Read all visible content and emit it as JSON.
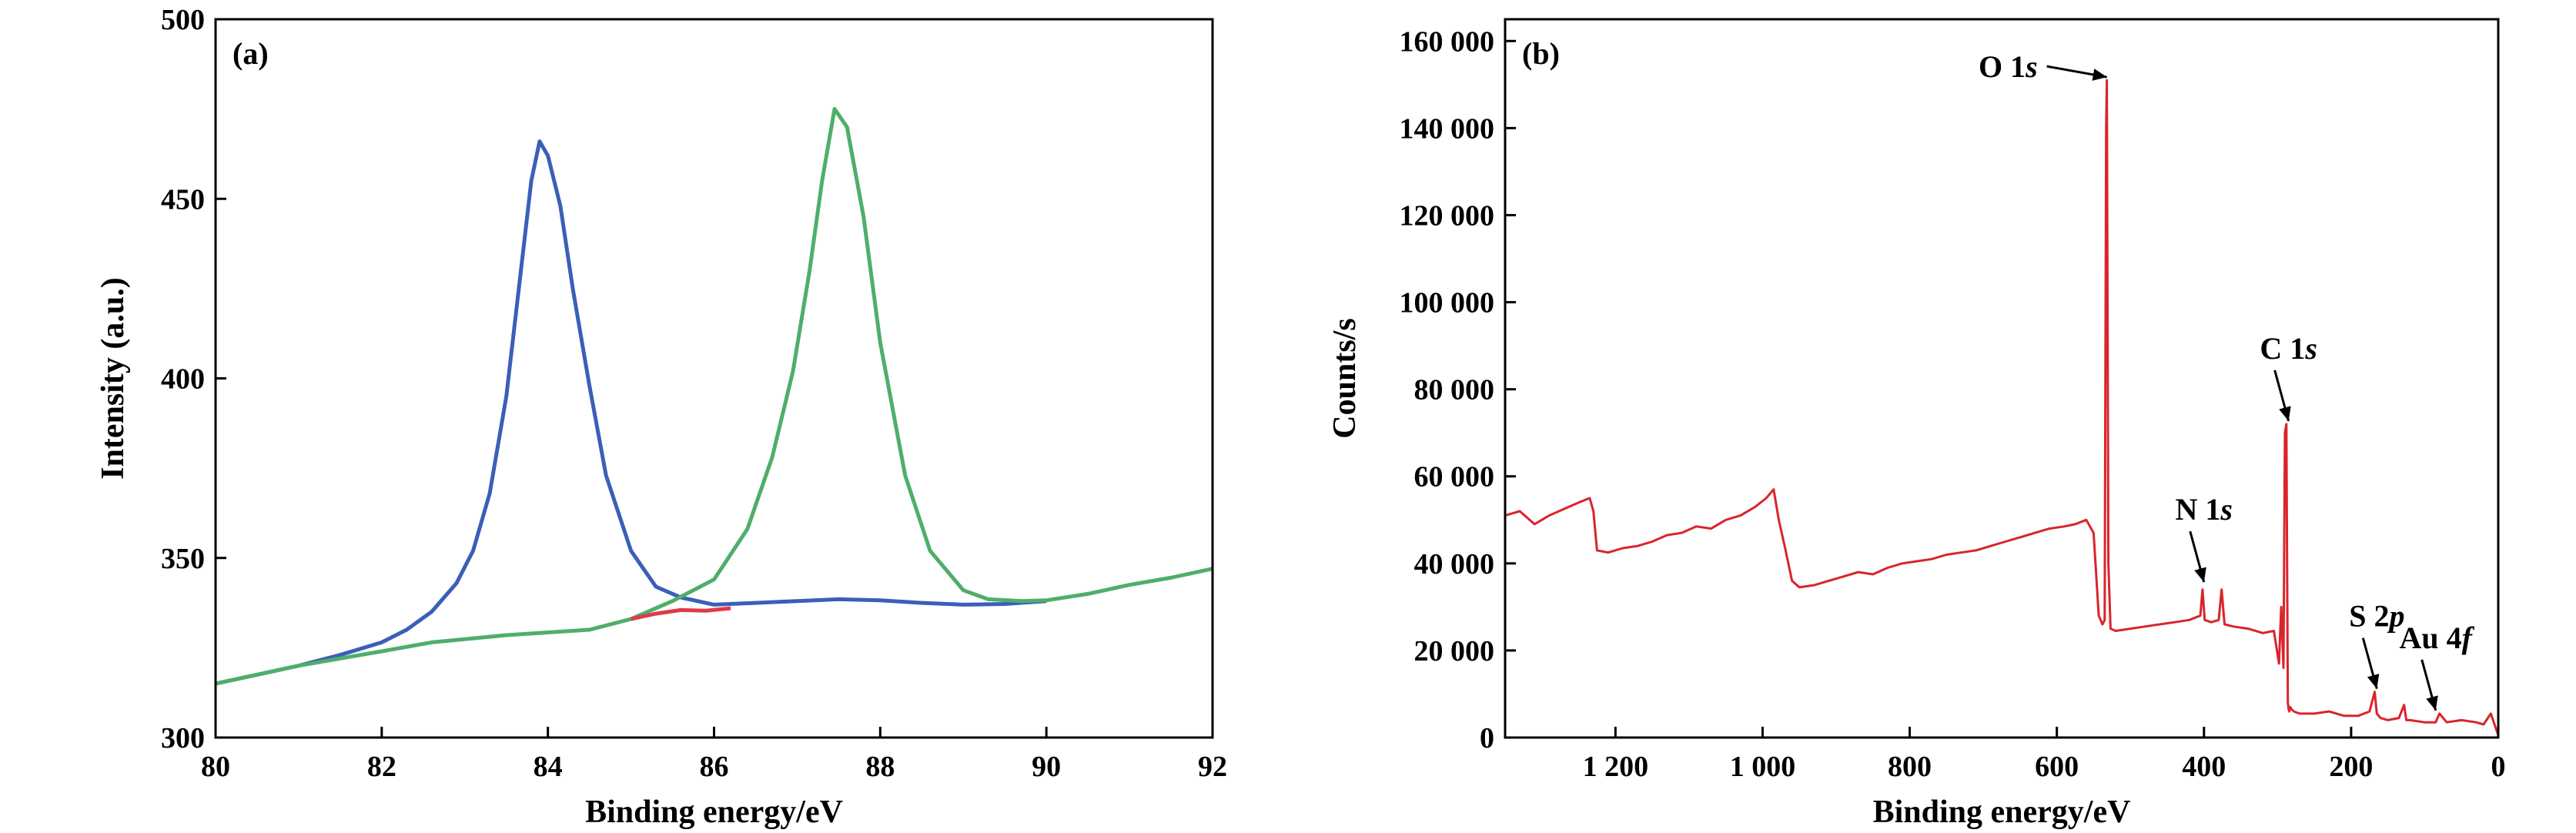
{
  "chart_data": [
    {
      "type": "line",
      "panel_label": "(a)",
      "xlabel": "Binding energy/eV",
      "ylabel": "Intensity (a.u.)",
      "xlim": [
        80,
        92
      ],
      "ylim": [
        300,
        500
      ],
      "xticks": [
        80,
        82,
        84,
        86,
        88,
        90,
        92
      ],
      "yticks": [
        300,
        350,
        400,
        450,
        500
      ],
      "xtick_labels": [
        "80",
        "82",
        "84",
        "86",
        "88",
        "90",
        "92"
      ],
      "ytick_labels": [
        "300",
        "350",
        "400",
        "450",
        "500"
      ],
      "colors": {
        "series_1": "#3b5fb8",
        "series_2": "#4fae6a",
        "series_3": "#e03a4a"
      },
      "series": [
        {
          "color": "#3b5fb8",
          "x": [
            80,
            80.5,
            81,
            81.5,
            82,
            82.3,
            82.6,
            82.9,
            83.1,
            83.3,
            83.5,
            83.65,
            83.8,
            83.9,
            84.0,
            84.15,
            84.3,
            84.5,
            84.7,
            85.0,
            85.3,
            85.6,
            86.0,
            86.5,
            87.0,
            87.5,
            88.0,
            88.5,
            89.0,
            89.5,
            90.0
          ],
          "y": [
            315,
            317.5,
            320,
            323,
            326.5,
            330,
            335,
            343,
            352,
            368,
            395,
            425,
            455,
            466,
            462,
            448,
            425,
            398,
            373,
            352,
            342,
            339,
            337,
            337.5,
            338,
            338.5,
            338.2,
            337.5,
            337,
            337.2,
            338
          ]
        },
        {
          "color": "#4fae6a",
          "x": [
            80,
            81,
            82,
            82.6,
            83.5,
            84.5,
            85.0,
            85.5,
            86.0,
            86.4,
            86.7,
            86.95,
            87.15,
            87.3,
            87.45,
            87.6,
            87.8,
            88.0,
            88.3,
            88.6,
            89.0,
            89.3,
            89.7,
            90.0,
            90.5,
            91.0,
            91.5,
            92.0
          ],
          "y": [
            315,
            320,
            324,
            326.5,
            328.5,
            330,
            333,
            338,
            344,
            358,
            378,
            402,
            430,
            455,
            475,
            470,
            445,
            410,
            373,
            352,
            341,
            338.5,
            338,
            338.2,
            340,
            342.5,
            344.5,
            347
          ]
        },
        {
          "color": "#e03a4a",
          "x": [
            85.0,
            85.3,
            85.6,
            85.9,
            86.2
          ],
          "y": [
            333,
            334.5,
            335.5,
            335.3,
            336
          ]
        }
      ]
    },
    {
      "type": "line",
      "panel_label": "(b)",
      "xlabel": "Binding energy/eV",
      "ylabel": "Counts/s",
      "xlim": [
        1350,
        0
      ],
      "ylim": [
        0,
        165000
      ],
      "xticks": [
        1200,
        1000,
        800,
        600,
        400,
        200,
        0
      ],
      "yticks": [
        0,
        20000,
        40000,
        60000,
        80000,
        100000,
        120000,
        140000,
        160000
      ],
      "xtick_labels": [
        "1 200",
        "1 000",
        "800",
        "600",
        "400",
        "200",
        "0"
      ],
      "ytick_labels": [
        "0",
        "20 000",
        "40 000",
        "60 000",
        "80 000",
        "100 000",
        "120 000",
        "140 000",
        "160 000"
      ],
      "colors": {
        "series_1": "#d9242b"
      },
      "annotations": [
        {
          "text": "O 1",
          "italic": "s",
          "target_x": 532,
          "target_y": 151000,
          "side": "left"
        },
        {
          "text": "C 1",
          "italic": "s",
          "target_x": 285,
          "target_y": 72000,
          "side": "above"
        },
        {
          "text": "N 1",
          "italic": "s",
          "target_x": 400,
          "target_y": 35000,
          "side": "above"
        },
        {
          "text": "S 2",
          "italic": "p",
          "target_x": 165,
          "target_y": 10500,
          "side": "above"
        },
        {
          "text": "Au 4",
          "italic": "f",
          "target_x": 85,
          "target_y": 5500,
          "side": "above"
        }
      ],
      "series": [
        {
          "color": "#d9242b",
          "x": [
            1350,
            1330,
            1310,
            1290,
            1270,
            1250,
            1235,
            1230,
            1225,
            1210,
            1190,
            1170,
            1150,
            1130,
            1110,
            1090,
            1070,
            1050,
            1030,
            1010,
            995,
            985,
            978,
            970,
            960,
            950,
            930,
            910,
            890,
            870,
            850,
            830,
            810,
            790,
            770,
            750,
            730,
            710,
            690,
            670,
            650,
            630,
            610,
            590,
            575,
            560,
            550,
            543,
            538,
            535,
            533,
            532,
            530,
            527,
            520,
            500,
            480,
            460,
            440,
            420,
            405,
            402,
            399,
            390,
            380,
            376,
            372,
            360,
            340,
            320,
            305,
            298,
            295,
            292,
            290,
            288,
            286,
            285,
            284,
            283,
            281,
            278,
            270,
            250,
            230,
            210,
            190,
            175,
            168,
            165,
            160,
            150,
            135,
            128,
            125,
            120,
            100,
            85,
            80,
            70,
            50,
            30,
            20,
            10,
            5,
            0
          ],
          "y": [
            51000,
            52000,
            49000,
            51000,
            52500,
            54000,
            55000,
            52000,
            43000,
            42500,
            43500,
            44000,
            45000,
            46500,
            47000,
            48500,
            48000,
            50000,
            51000,
            53000,
            55000,
            57000,
            50000,
            44000,
            36000,
            34500,
            35000,
            36000,
            37000,
            38000,
            37500,
            39000,
            40000,
            40500,
            41000,
            42000,
            42500,
            43000,
            44000,
            45000,
            46000,
            47000,
            48000,
            48500,
            49000,
            50000,
            47000,
            28000,
            26000,
            27000,
            140000,
            151000,
            40000,
            25000,
            24500,
            25000,
            25500,
            26000,
            26500,
            27000,
            28000,
            34000,
            27000,
            26500,
            27000,
            34000,
            26000,
            25500,
            25000,
            24000,
            24500,
            17000,
            30000,
            16000,
            70000,
            72000,
            8000,
            6500,
            6000,
            7000,
            6500,
            6000,
            5500,
            5500,
            6000,
            5000,
            5000,
            6000,
            10500,
            5500,
            4500,
            4000,
            4500,
            7500,
            4000,
            4000,
            3500,
            3500,
            5500,
            3500,
            4000,
            3500,
            3000,
            5500,
            3000,
            500
          ]
        }
      ]
    }
  ]
}
